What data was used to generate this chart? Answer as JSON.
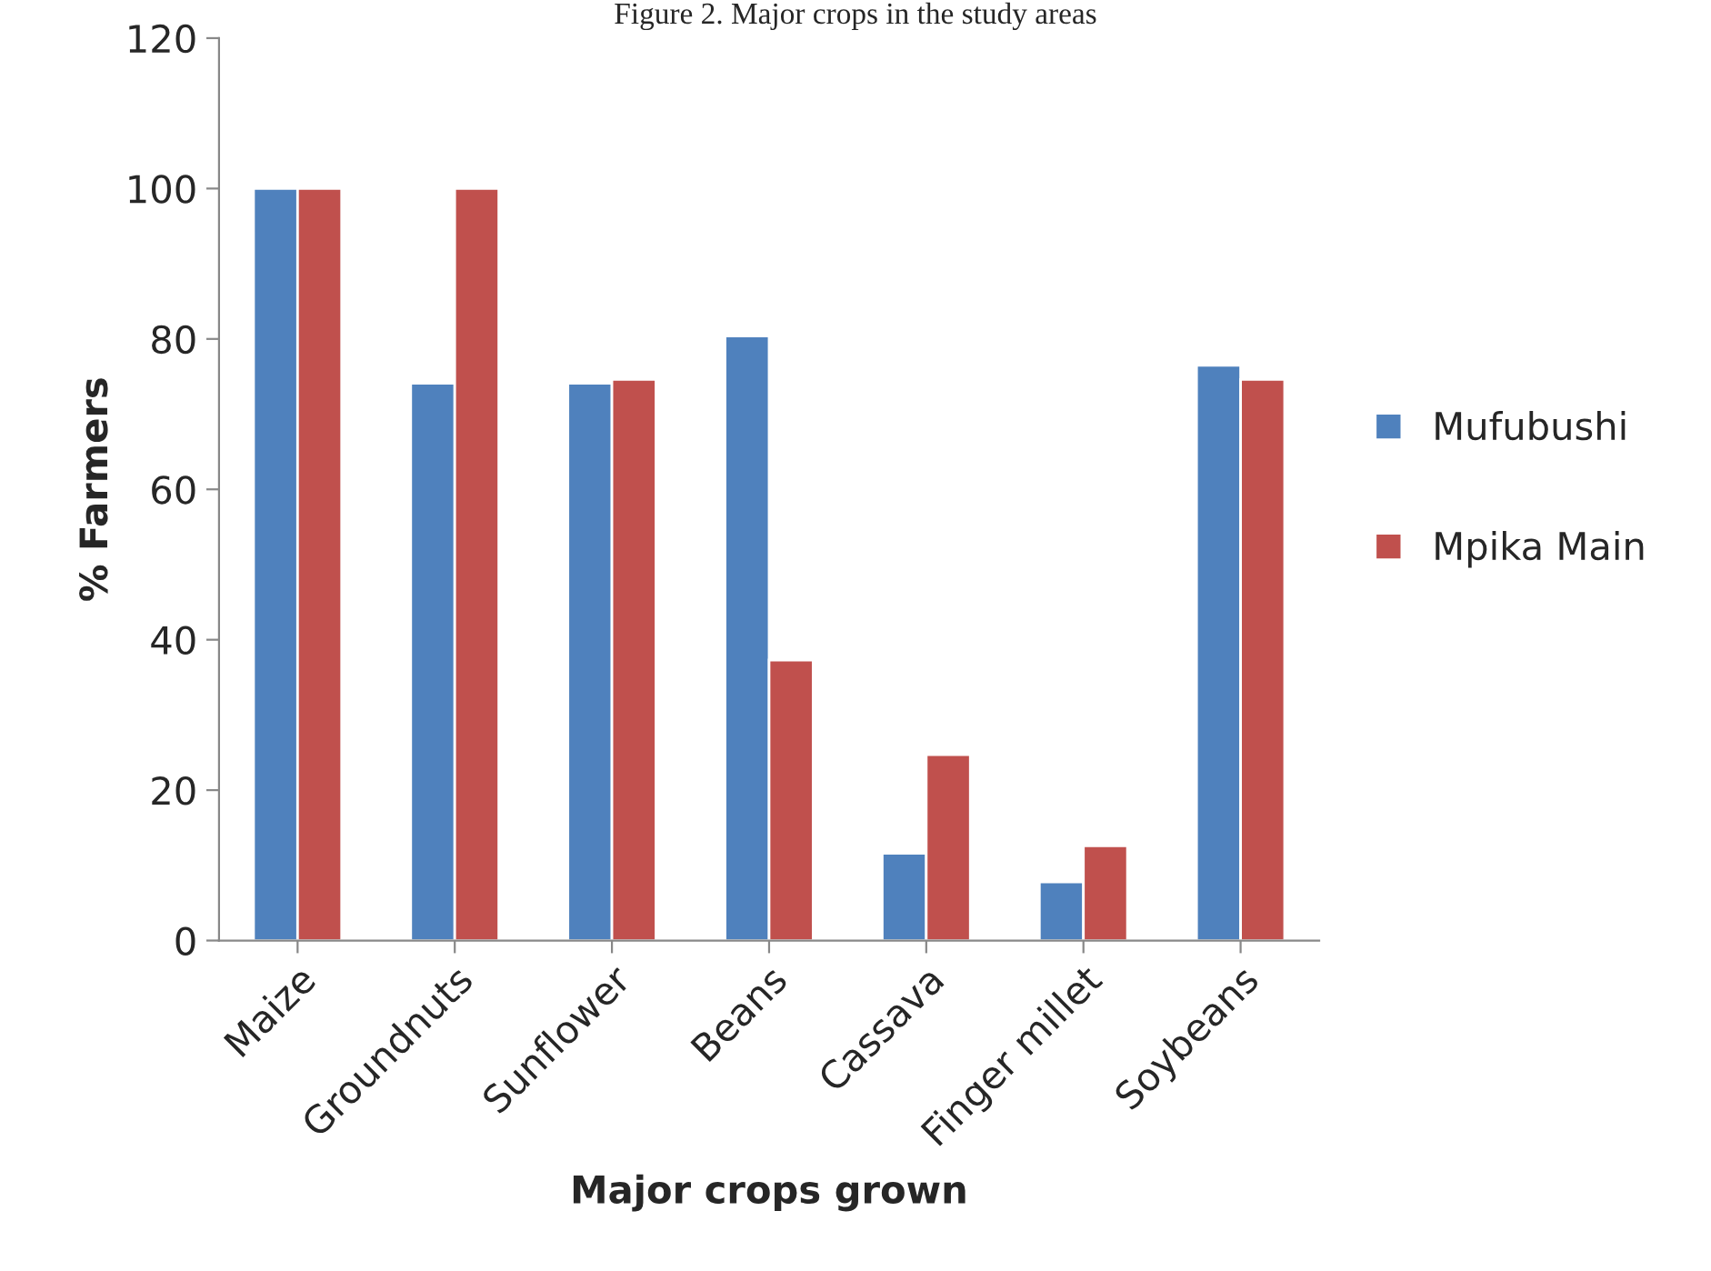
{
  "chart_data": {
    "type": "bar",
    "title": "Figure 2. Major crops in the study areas",
    "xlabel": "Major crops grown",
    "ylabel": "% Farmers",
    "categories": [
      "Maize",
      "Groundnuts",
      "Sunflower",
      "Beans",
      "Cassava",
      "Finger millet",
      "Soybeans"
    ],
    "series": [
      {
        "name": "Mufubushi",
        "color": "#4f81bd",
        "values": [
          100,
          74.1,
          74.1,
          80.4,
          11.6,
          7.8,
          76.5
        ]
      },
      {
        "name": "Mpika Main",
        "color": "#c0504d",
        "values": [
          100,
          100,
          74.6,
          37.3,
          24.7,
          12.6,
          74.6
        ]
      }
    ],
    "ylim": [
      0,
      120
    ],
    "yticks": [
      0,
      20,
      40,
      60,
      80,
      100,
      120
    ],
    "grid": false,
    "legend": "right"
  }
}
